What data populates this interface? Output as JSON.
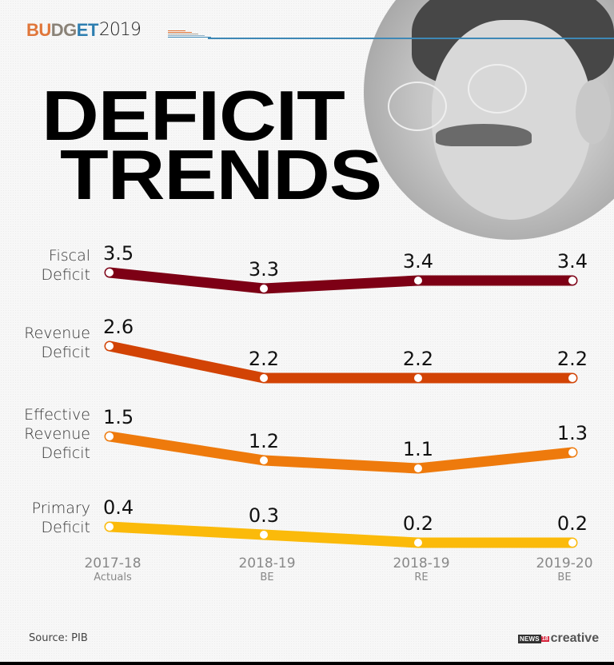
{
  "header": {
    "brand_parts": [
      "BU",
      "DG",
      "ET"
    ],
    "brand_year": "2019"
  },
  "title": {
    "line1": "DEFICIT",
    "line2": "TRENDS"
  },
  "colors": {
    "brand_orange": "#e0763a",
    "brand_gray": "#8a8277",
    "brand_blue": "#2d7eb0",
    "rule": "#3e88b6"
  },
  "chart_data": {
    "type": "line",
    "title": "DEFICIT TRENDS",
    "xlabel": "",
    "ylabel": "",
    "categories": [
      {
        "year": "2017-18",
        "sub": "Actuals"
      },
      {
        "year": "2018-19",
        "sub": "BE"
      },
      {
        "year": "2018-19",
        "sub": "RE"
      },
      {
        "year": "2019-20",
        "sub": "BE"
      }
    ],
    "series": [
      {
        "name": "Fiscal Deficit",
        "label_lines": [
          "Fiscal",
          "Deficit"
        ],
        "color": "#7d0015",
        "values": [
          3.5,
          3.3,
          3.4,
          3.4
        ]
      },
      {
        "name": "Revenue Deficit",
        "label_lines": [
          "Revenue",
          "Deficit"
        ],
        "color": "#d24305",
        "values": [
          2.6,
          2.2,
          2.2,
          2.2
        ]
      },
      {
        "name": "Effective Revenue Deficit",
        "label_lines": [
          "Effective",
          "Revenue",
          "Deficit"
        ],
        "color": "#ee7a0c",
        "values": [
          1.5,
          1.2,
          1.1,
          1.3
        ]
      },
      {
        "name": "Primary Deficit",
        "label_lines": [
          "Primary",
          "Deficit"
        ],
        "color": "#fbba0a",
        "values": [
          0.4,
          0.3,
          0.2,
          0.2
        ]
      }
    ],
    "value_labels": [
      [
        "3.5",
        "3.3",
        "3.4",
        "3.4"
      ],
      [
        "2.6",
        "2.2",
        "2.2",
        "2.2"
      ],
      [
        "1.5",
        "1.2",
        "1.1",
        "1.3"
      ],
      [
        "0.4",
        "0.3",
        "0.2",
        "0.2"
      ]
    ],
    "grid": false,
    "legend": "inline-left"
  },
  "footer": {
    "source": "Source: PIB",
    "logo_news": "NEWS",
    "logo_18": "18",
    "logo_creative": "creative"
  }
}
